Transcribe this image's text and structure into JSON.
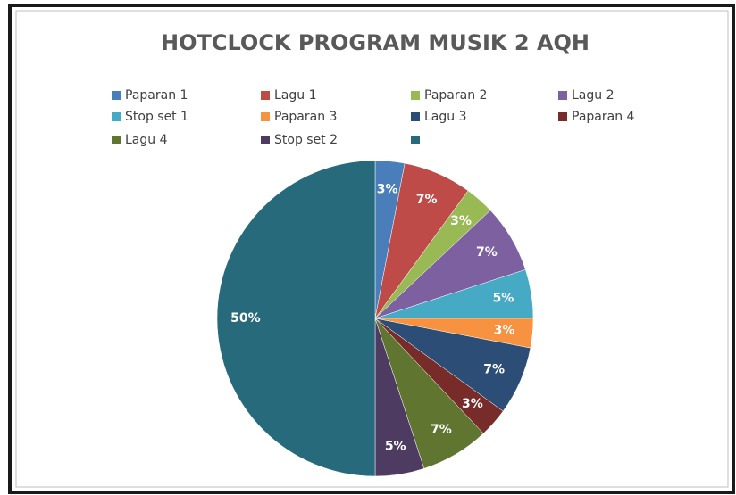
{
  "chart_data": {
    "type": "pie",
    "title": "HOTCLOCK PROGRAM MUSIK 2 AQH",
    "categories": [
      "Paparan 1",
      "Lagu 1",
      "Paparan 2",
      "Lagu 2",
      "Stop set 1",
      "Paparan 3",
      "Lagu 3",
      "Paparan 4",
      "Lagu 4",
      "Stop set 2",
      null
    ],
    "values": [
      3,
      7,
      3,
      7,
      5,
      3,
      7,
      3,
      7,
      5,
      50
    ],
    "value_labels": [
      "3%",
      "7%",
      "3%",
      "7%",
      "5%",
      "3%",
      "7%",
      "3%",
      "7%",
      "5%",
      "50%"
    ],
    "colors": [
      "#4a7ebb",
      "#be4b48",
      "#98b954",
      "#7d60a0",
      "#46aac5",
      "#f69240",
      "#2c4d75",
      "#772c2a",
      "#5f7530",
      "#4d3b62",
      "#276a7c"
    ],
    "legend": "top"
  }
}
